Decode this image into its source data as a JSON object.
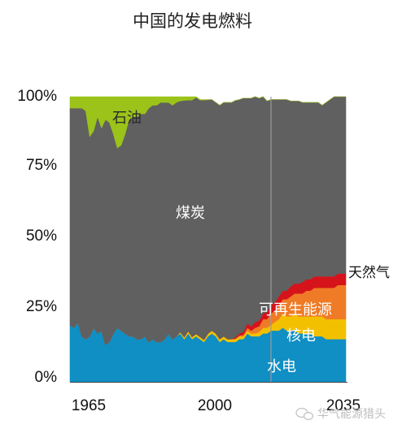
{
  "chart_data": {
    "type": "area",
    "title": "中国的发电燃料",
    "x_ticks": [
      "1965",
      "2000",
      "2035"
    ],
    "y_ticks": [
      "0%",
      "25%",
      "50%",
      "75%",
      "100%"
    ],
    "xlim": [
      1965,
      2035
    ],
    "ylim": [
      0,
      100
    ],
    "divider_year": 2016,
    "x": [
      1965,
      1966,
      1967,
      1968,
      1969,
      1970,
      1971,
      1972,
      1973,
      1974,
      1975,
      1976,
      1977,
      1978,
      1979,
      1980,
      1981,
      1982,
      1983,
      1984,
      1985,
      1986,
      1987,
      1988,
      1989,
      1990,
      1991,
      1992,
      1993,
      1994,
      1995,
      1996,
      1997,
      1998,
      1999,
      2000,
      2001,
      2002,
      2003,
      2004,
      2005,
      2006,
      2007,
      2008,
      2009,
      2010,
      2011,
      2012,
      2013,
      2014,
      2015,
      2016,
      2017,
      2018,
      2019,
      2020,
      2021,
      2022,
      2023,
      2024,
      2025,
      2026,
      2027,
      2028,
      2029,
      2030,
      2031,
      2032,
      2033,
      2034,
      2035
    ],
    "series": [
      {
        "name": "水电",
        "color": "#0f8fc4",
        "values": [
          20,
          19,
          21,
          16,
          15,
          16,
          19,
          17,
          18,
          13,
          14,
          17,
          19,
          18,
          17,
          16,
          16,
          15,
          15,
          16,
          14,
          15,
          14,
          14,
          15,
          17,
          15,
          16,
          17,
          15,
          17,
          15,
          16,
          15,
          14,
          16,
          17,
          16,
          14,
          15,
          14,
          14,
          14,
          15,
          15,
          17,
          16,
          16,
          16,
          17,
          17,
          18,
          18,
          18,
          19,
          18,
          18,
          18,
          17,
          17,
          17,
          17,
          16,
          16,
          16,
          15,
          15,
          15,
          15,
          15,
          15
        ]
      },
      {
        "name": "核电",
        "color": "#f3c000",
        "values": [
          0,
          0,
          0,
          0,
          0,
          0,
          0,
          0,
          0,
          0,
          0,
          0,
          0,
          0,
          0,
          0,
          0,
          0,
          0,
          0,
          0,
          0,
          0,
          0,
          0,
          0,
          0,
          0,
          0.5,
          0.7,
          0.8,
          0.8,
          0.8,
          0.8,
          0.8,
          0.9,
          1,
          1,
          1,
          1,
          1,
          1,
          1,
          1,
          1,
          1,
          1,
          1,
          1.5,
          2,
          2,
          2,
          3,
          4,
          5,
          5,
          5,
          6,
          6,
          6,
          6,
          6,
          7,
          7,
          7,
          7,
          7,
          7,
          7,
          7,
          7
        ]
      },
      {
        "name": "可再生能源",
        "color": "#ef7b26",
        "values": [
          0,
          0,
          0,
          0,
          0,
          0,
          0,
          0,
          0,
          0,
          0,
          0,
          0,
          0,
          0,
          0,
          0,
          0,
          0,
          0,
          0,
          0,
          0,
          0,
          0,
          0,
          0,
          0,
          0,
          0,
          0,
          0,
          0,
          0,
          0,
          0,
          0,
          0,
          0,
          0,
          0,
          0,
          0.2,
          0.3,
          0.5,
          1,
          1,
          2,
          2,
          3,
          3,
          4,
          4,
          5,
          5,
          6,
          7,
          7,
          8,
          8,
          9,
          9,
          10,
          10,
          10,
          11,
          11,
          11,
          12,
          12,
          12
        ]
      },
      {
        "name": "天然气",
        "color": "#d6131b",
        "values": [
          0,
          0,
          0,
          0,
          0,
          0,
          0,
          0,
          0,
          0,
          0,
          0,
          0,
          0,
          0,
          0,
          0,
          0,
          0,
          0,
          0,
          0,
          0,
          0,
          0,
          0,
          0,
          0,
          0,
          0,
          0,
          0,
          0,
          0,
          0,
          0,
          0,
          0,
          0,
          0,
          0,
          0,
          0.5,
          0.7,
          1,
          1.5,
          1.5,
          2,
          2,
          2,
          2.5,
          3,
          3,
          3,
          3,
          3,
          3.5,
          3.5,
          3.5,
          4,
          4,
          4,
          4,
          4,
          4,
          4,
          4,
          4,
          4,
          4,
          4
        ]
      },
      {
        "name": "煤炭",
        "color": "#606060",
        "values": [
          76,
          77,
          75,
          80,
          80,
          70,
          69,
          76,
          71,
          79,
          77,
          70,
          63,
          65,
          70,
          76,
          77,
          78,
          79,
          78,
          82,
          82,
          83,
          84,
          83,
          81,
          82,
          82,
          81,
          83,
          81,
          83,
          83,
          83,
          84,
          82,
          81,
          81,
          82,
          82,
          83,
          83,
          83,
          82,
          82,
          79,
          80,
          79,
          78,
          76,
          74,
          72,
          71,
          69,
          67,
          67,
          65,
          64,
          64,
          63,
          62,
          62,
          61,
          61,
          60,
          61,
          62,
          63,
          62,
          62,
          62
        ]
      },
      {
        "name": "石油",
        "color": "#9bc31a",
        "values": [
          4,
          4,
          4,
          4,
          5,
          14,
          12,
          7,
          11,
          8,
          9,
          13,
          18,
          17,
          13,
          8,
          7,
          7,
          6,
          6,
          4,
          3,
          3,
          2,
          2,
          2,
          3,
          2,
          1.5,
          1.3,
          1.2,
          1.2,
          0.2,
          0.2,
          0.2,
          0.1,
          0,
          0,
          0,
          0,
          0,
          0,
          0,
          0,
          0,
          0,
          0,
          0,
          0,
          0,
          0,
          0,
          0,
          0,
          0,
          0,
          0,
          0,
          0,
          0,
          0,
          0,
          0,
          0,
          0,
          0,
          0,
          0,
          0,
          0,
          0
        ]
      }
    ],
    "annotations": [
      {
        "text": "石油",
        "series": "石油"
      },
      {
        "text": "煤炭",
        "series": "煤炭"
      },
      {
        "text": "天然气",
        "series": "天然气"
      },
      {
        "text": "可再生能源",
        "series": "可再生能源"
      },
      {
        "text": "核电",
        "series": "核电"
      },
      {
        "text": "水电",
        "series": "水电"
      }
    ]
  },
  "watermark": {
    "text": "华气能源猎头",
    "icon": "wechat-icon"
  }
}
